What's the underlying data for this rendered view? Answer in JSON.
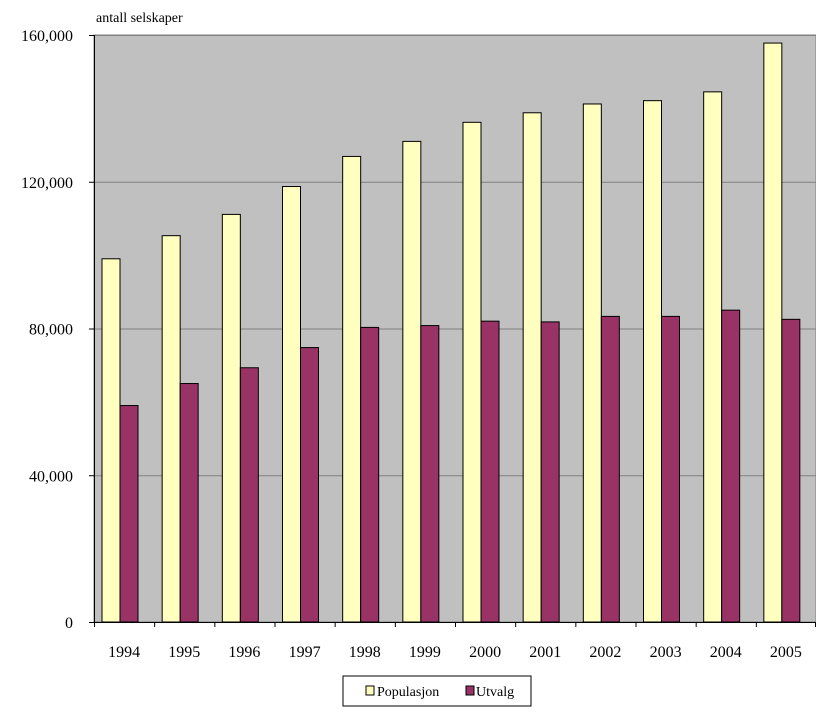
{
  "chart_data": {
    "type": "bar",
    "ylabel": "antall selskaper",
    "categories": [
      "1994",
      "1995",
      "1996",
      "1997",
      "1998",
      "1999",
      "2000",
      "2001",
      "2002",
      "2003",
      "2004",
      "2005"
    ],
    "series": [
      {
        "name": "Populasjon",
        "values": [
          99000,
          105300,
          111100,
          118700,
          126900,
          131000,
          136200,
          138800,
          141200,
          142100,
          144500,
          157800
        ]
      },
      {
        "name": "Utvalg",
        "values": [
          59000,
          65000,
          69300,
          74800,
          80300,
          80800,
          82000,
          81800,
          83300,
          83300,
          85000,
          82500
        ]
      }
    ],
    "ylim": [
      0,
      160000
    ],
    "yticks": [
      "0",
      "40,000",
      "80,000",
      "120,000",
      "160,000"
    ],
    "ytick_values": [
      0,
      40000,
      80000,
      120000,
      160000
    ],
    "grid": true,
    "legend_position": "bottom-center",
    "colors": {
      "plot_background": "#c0c0c0",
      "Populasjon": "#ffffc0",
      "Utvalg": "#993366",
      "gridline": "#808080",
      "axis": "#000000"
    }
  }
}
